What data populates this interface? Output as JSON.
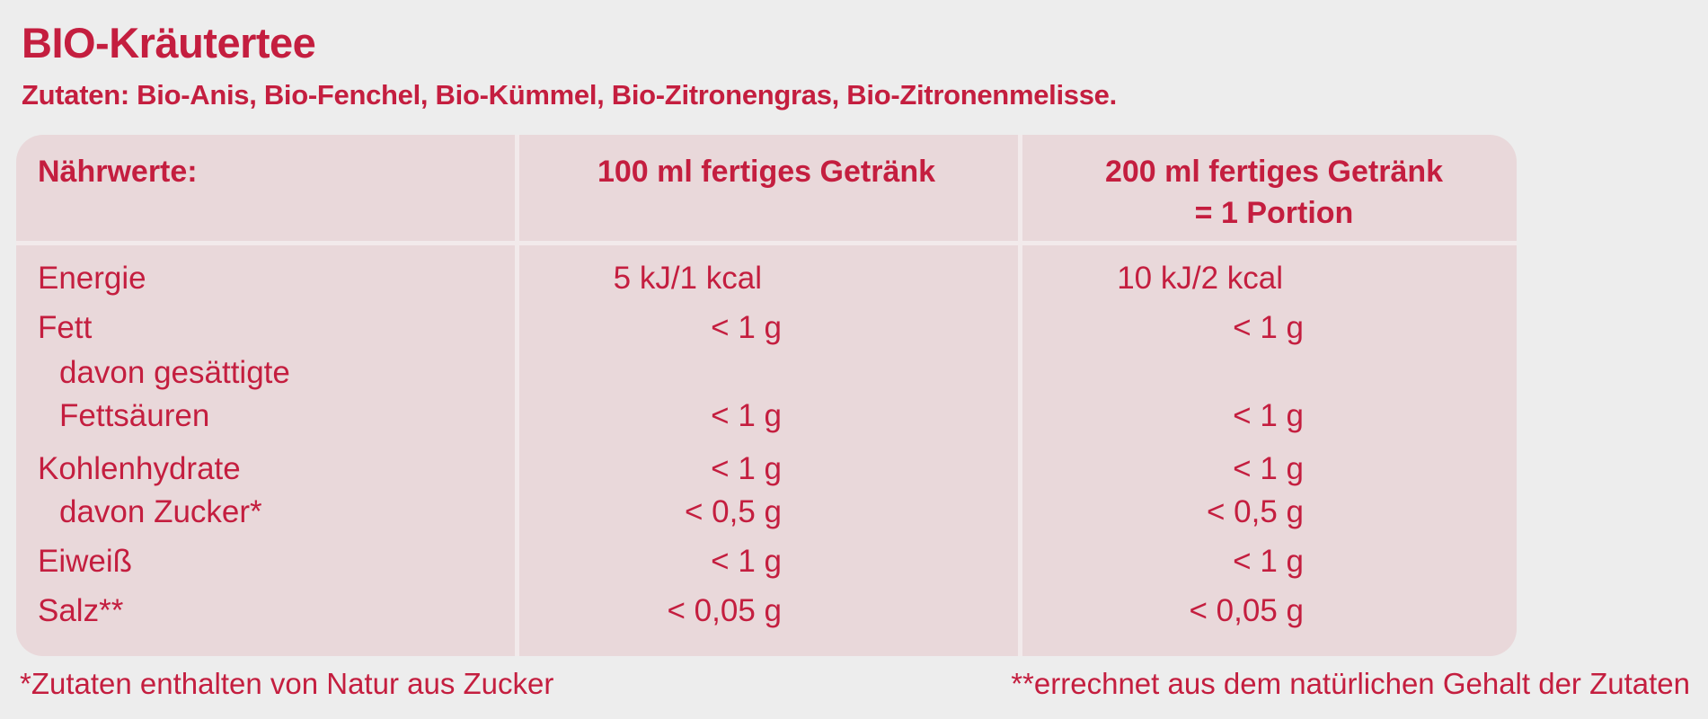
{
  "title": "BIO-Kräutertee",
  "ingredients": "Zutaten: Bio-Anis, Bio-Fenchel, Bio-Kümmel, Bio-Zitronengras, Bio-Zitronenmelisse.",
  "table": {
    "headers": [
      "Nährwerte:",
      "100 ml fertiges Getränk",
      "200 ml fertiges Getränk",
      "= 1 Portion"
    ],
    "rows": [
      {
        "label": "Energie",
        "v100": "5 kJ/1 kcal",
        "v200": "10 kJ/2 kcal"
      },
      {
        "label": "Fett",
        "v100": "< 1 g",
        "v200": "< 1 g"
      },
      {
        "label": "davon gesättigte",
        "v100": "",
        "v200": ""
      },
      {
        "label": "Fettsäuren",
        "v100": "< 1 g",
        "v200": "< 1 g"
      },
      {
        "label": "Kohlenhydrate",
        "v100": "< 1 g",
        "v200": "< 1 g"
      },
      {
        "label": "davon Zucker*",
        "v100": "< 0,5 g",
        "v200": "< 0,5 g"
      },
      {
        "label": "Eiweiß",
        "v100": "< 1 g",
        "v200": "< 1 g"
      },
      {
        "label": "Salz**",
        "v100": "< 0,05 g",
        "v200": "< 0,05 g"
      }
    ]
  },
  "footnotes": [
    "*Zutaten enthalten von Natur aus Zucker",
    "**errechnet aus dem natürlichen Gehalt der Zutaten"
  ],
  "colors": {
    "text": "#c41e3f",
    "background": "#ededed",
    "table_bg": "#e9d8da"
  }
}
